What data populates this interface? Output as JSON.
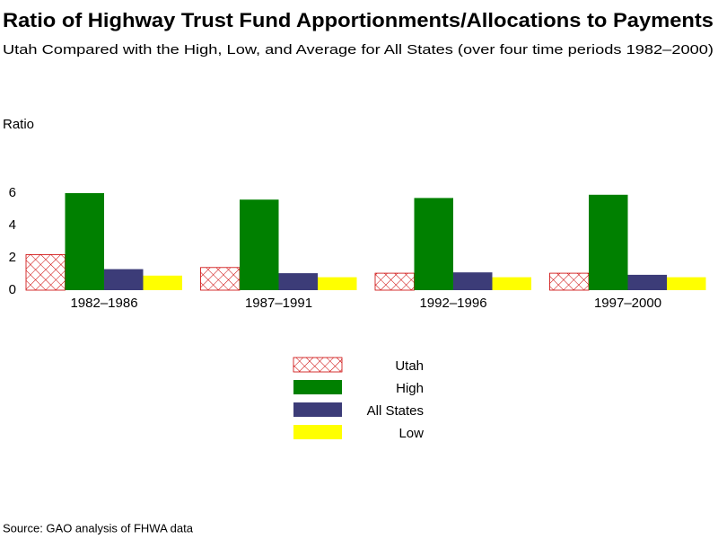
{
  "chart_data": {
    "type": "bar",
    "title": "Ratio of Highway Trust Fund Apportionments/Allocations to Payments",
    "subtitle": "Utah Compared with the High, Low, and Average for All States (over four time periods 1982–2000)",
    "y_label": "Ratio",
    "source": "Source: GAO analysis of FHWA data",
    "categories": [
      "1982–1986",
      "1987–1991",
      "1992–1996",
      "1997–2000"
    ],
    "series": [
      {
        "name": "Utah",
        "color": "#cc0000",
        "pattern": "crosshatch",
        "values": [
          2.2,
          1.4,
          1.05,
          1.05
        ]
      },
      {
        "name": "High",
        "color": "#008000",
        "values": [
          6.0,
          5.6,
          5.7,
          5.9
        ]
      },
      {
        "name": "All States",
        "color": "#3c3c78",
        "values": [
          1.3,
          1.05,
          1.1,
          0.95
        ]
      },
      {
        "name": "Low",
        "color": "#ffff00",
        "values": [
          0.9,
          0.8,
          0.8,
          0.8
        ]
      }
    ],
    "ylim": [
      0,
      6
    ],
    "yticks": [
      0,
      2,
      4,
      6
    ],
    "grid": false
  }
}
